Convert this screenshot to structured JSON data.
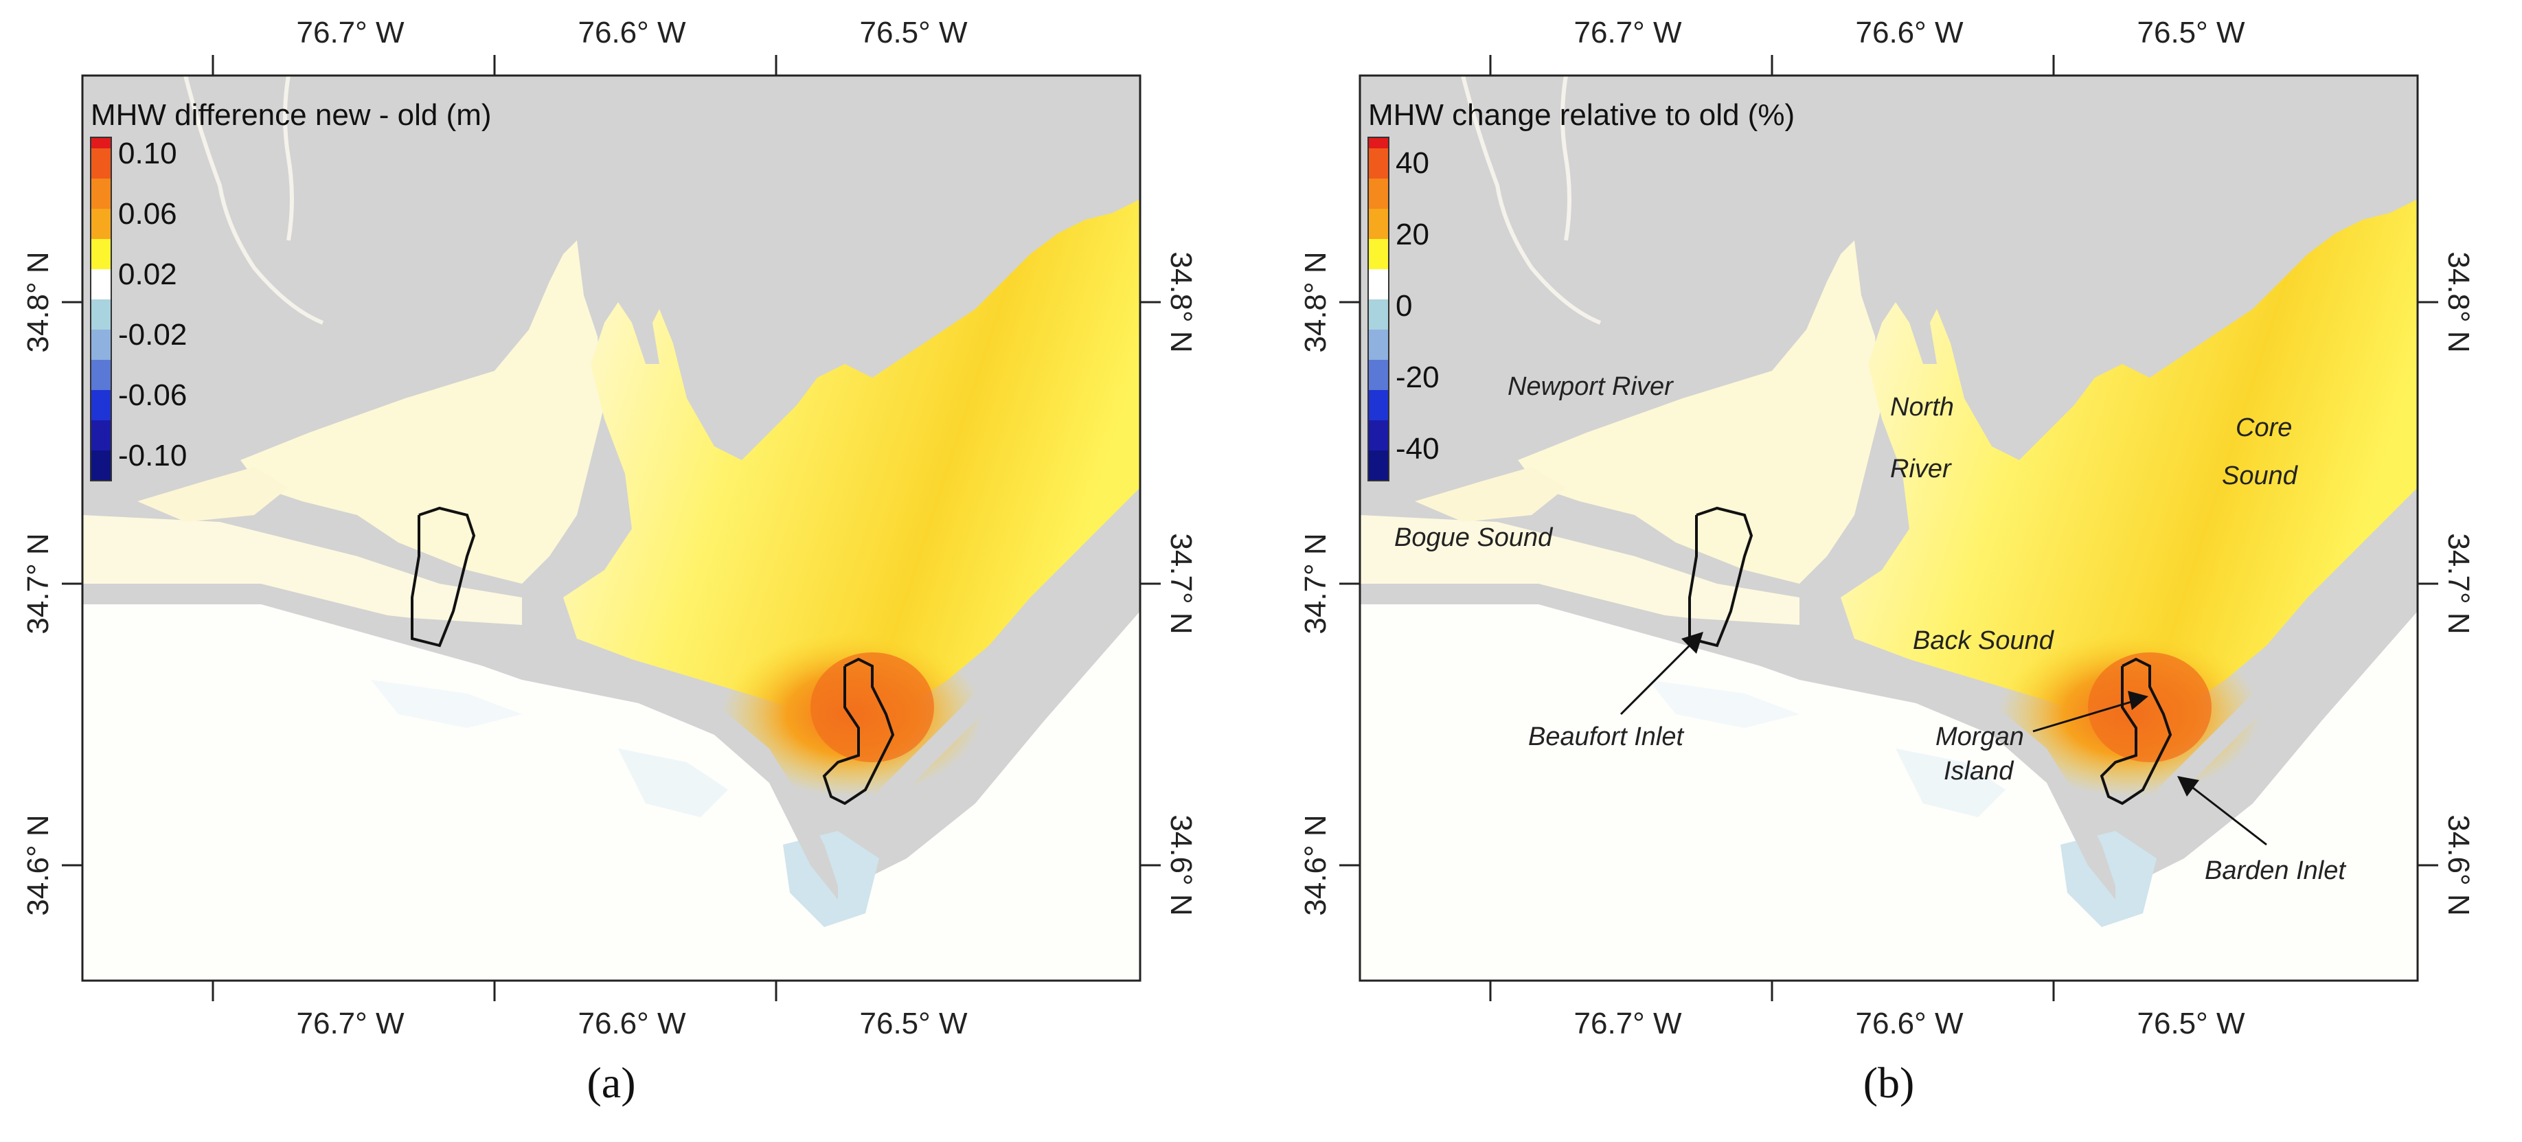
{
  "panels": [
    {
      "id": "a",
      "legend_title": "MHW difference new - old (m)",
      "legend_labels": [
        "0.10",
        "0.06",
        "0.02",
        "-0.02",
        "-0.06",
        "-0.10"
      ],
      "caption": "(a)"
    },
    {
      "id": "b",
      "legend_title": "MHW change relative to old (%)",
      "legend_labels": [
        "40",
        "20",
        "0",
        "-20",
        "-40"
      ],
      "caption": "(b)"
    }
  ],
  "axes": {
    "lon_ticks": [
      "76.7° W",
      "76.6° W",
      "76.5° W"
    ],
    "lat_ticks": [
      "34.8° N",
      "34.7° N",
      "34.6° N"
    ]
  },
  "colors": {
    "land": "#d3d3d3",
    "frame": "#222222",
    "scale": [
      "#e31a1c",
      "#f05a1a",
      "#f5891c",
      "#f7a81d",
      "#f9cf1f",
      "#fdf52e",
      "#ffffff",
      "#a9d3df",
      "#8fb1df",
      "#5a78d6",
      "#1f34d4",
      "#1b1ba8",
      "#0e1282"
    ]
  },
  "labels_b": {
    "newport_river": "Newport River",
    "north_river_1": "North",
    "north_river_2": "River",
    "core_sound_1": "Core",
    "core_sound_2": "Sound",
    "bogue_sound": "Bogue Sound",
    "back_sound": "Back Sound",
    "beaufort_inlet": "Beaufort Inlet",
    "morgan_island_1": "Morgan",
    "morgan_island_2": "Island",
    "barden_inlet": "Barden Inlet"
  }
}
